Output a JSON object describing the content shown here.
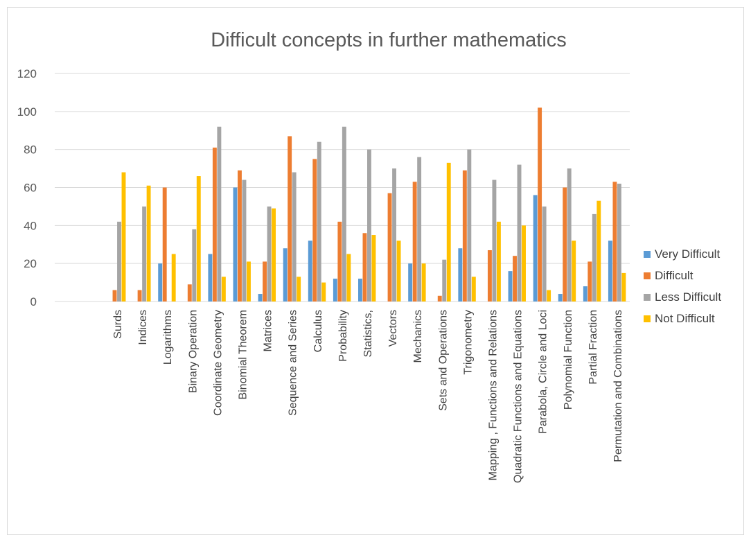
{
  "chart_data": {
    "type": "bar",
    "title": "Difficult concepts in further mathematics",
    "xlabel": "",
    "ylabel": "",
    "ylim": [
      0,
      120
    ],
    "yticks": [
      0,
      20,
      40,
      60,
      80,
      100,
      120
    ],
    "grid": true,
    "legend_position": "right",
    "categories": [
      "Surds",
      "Indices",
      "Logarithms",
      "Binary Operation",
      "Coordinate Geometry",
      "Binomial Theorem",
      "Matrices",
      "Sequence and Series",
      "Calculus",
      "Probability",
      "Statistics,",
      "Vectors",
      "Mechanics",
      "Sets and Operations",
      "Trigonometry",
      "Mapping , Functions and Relations",
      "Quadratic Functions and Equations",
      "Parabola, Circle and Loci",
      "Polynomial Function",
      "Partial Fraction",
      "Permutation and Combinations"
    ],
    "series": [
      {
        "name": "Very Difficult",
        "color": "#5B9BD5",
        "values": [
          0,
          0,
          20,
          0,
          25,
          60,
          4,
          28,
          32,
          12,
          12,
          0,
          20,
          0,
          28,
          0,
          16,
          56,
          4,
          8,
          32
        ]
      },
      {
        "name": "Difficult",
        "color": "#ED7D31",
        "values": [
          6,
          6,
          60,
          9,
          81,
          69,
          21,
          87,
          75,
          42,
          36,
          57,
          63,
          3,
          69,
          27,
          24,
          102,
          60,
          21,
          63
        ]
      },
      {
        "name": "Less Difficult",
        "color": "#A5A5A5",
        "values": [
          42,
          50,
          0,
          38,
          92,
          64,
          50,
          68,
          84,
          92,
          80,
          70,
          76,
          22,
          80,
          64,
          72,
          50,
          70,
          46,
          62
        ]
      },
      {
        "name": "Not Difficult",
        "color": "#FFC000",
        "values": [
          68,
          61,
          25,
          66,
          13,
          21,
          49,
          13,
          10,
          25,
          35,
          32,
          20,
          73,
          13,
          42,
          40,
          6,
          32,
          53,
          15
        ]
      }
    ]
  }
}
